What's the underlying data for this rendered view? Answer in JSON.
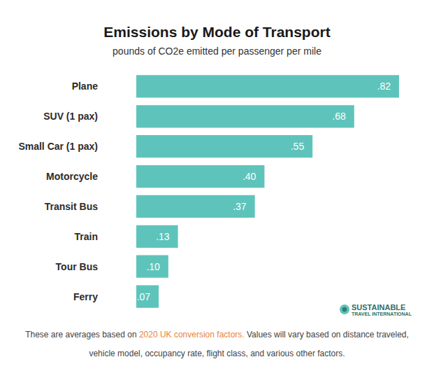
{
  "chart_data": {
    "type": "bar",
    "orientation": "horizontal",
    "title": "Emissions by Mode of Transport",
    "subtitle": "pounds of CO2e emitted per passenger per mile",
    "categories": [
      "Plane",
      "SUV (1 pax)",
      "Small Car (1 pax)",
      "Motorcycle",
      "Transit Bus",
      "Train",
      "Tour Bus",
      "Ferry"
    ],
    "values": [
      0.82,
      0.68,
      0.55,
      0.4,
      0.37,
      0.13,
      0.1,
      0.07
    ],
    "value_labels": [
      ".82",
      ".68",
      ".55",
      ".40",
      ".37",
      ".13",
      ".10",
      ".07"
    ],
    "color": "#5ec4bb",
    "xlim": [
      0,
      0.82
    ],
    "data_labels": true,
    "tick_labels": "y",
    "grid": false,
    "footnote": [
      "These are averages based on 2020 UK conversion factors. Values will vary based on distance traveled,",
      "vehicle model, occupancy rate, flight class, and various other factors."
    ],
    "footnote_link": "2020 UK conversion factors.",
    "logo": [
      "SUSTAINABLE",
      "TRAVEL INTERNATIONAL"
    ]
  }
}
